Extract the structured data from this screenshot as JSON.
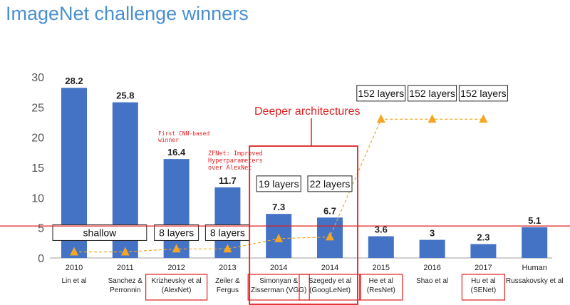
{
  "page_title": "ImageNet challenge winners",
  "chart_data": {
    "type": "bar",
    "title": "ImageNet challenge winners",
    "ylim": [
      0,
      30
    ],
    "yticks": [
      0,
      5,
      10,
      15,
      20,
      25,
      30
    ],
    "grid": false,
    "bar_color": "#4472c4",
    "marker_color": "#f5a623",
    "highlight_color": "#e02020",
    "categories": [
      {
        "year": "2010",
        "author": [
          "Lin et al"
        ],
        "boxed": false
      },
      {
        "year": "2011",
        "author": [
          "Sanchez &",
          "Perronnin"
        ],
        "boxed": false
      },
      {
        "year": "2012",
        "author": [
          "Krizhevsky et al",
          "(AlexNet)"
        ],
        "boxed": true
      },
      {
        "year": "2013",
        "author": [
          "Zeiler &",
          "Fergus"
        ],
        "boxed": false
      },
      {
        "year": "2014",
        "author": [
          "Simonyan &",
          "Zisserman (VGG)"
        ],
        "boxed": true
      },
      {
        "year": "2014",
        "author": [
          "Szegedy et al",
          "(GoogLeNet)"
        ],
        "boxed": true
      },
      {
        "year": "2015",
        "author": [
          "He et al",
          "(ResNet)"
        ],
        "boxed": true
      },
      {
        "year": "2016",
        "author": [
          "Shao et al"
        ],
        "boxed": false
      },
      {
        "year": "2017",
        "author": [
          "Hu et al",
          "(SENet)"
        ],
        "boxed": true
      },
      {
        "year": "Human",
        "author": [
          "Russakovsky et al"
        ],
        "boxed": false
      }
    ],
    "values": [
      28.2,
      25.8,
      16.4,
      11.7,
      7.3,
      6.7,
      3.6,
      3,
      2.3,
      5.1
    ],
    "value_labels": [
      "28.2",
      "25.8",
      "16.4",
      "11.7",
      "7.3",
      "6.7",
      "3.6",
      "3",
      "2.3",
      "5.1"
    ],
    "depth_markers": [
      1,
      1,
      1.5,
      1.5,
      3.2,
      3.5,
      23,
      23,
      23,
      null
    ],
    "layer_labels": [
      {
        "text": "shallow",
        "span": [
          0,
          1
        ],
        "y": 4.2
      },
      {
        "text": "8 layers",
        "span": [
          2,
          2
        ],
        "y": 4.2
      },
      {
        "text": "8 layers",
        "span": [
          3,
          3
        ],
        "y": 4.2
      },
      {
        "text": "19 layers",
        "span": [
          4,
          4
        ],
        "y": 12.3
      },
      {
        "text": "22 layers",
        "span": [
          5,
          5
        ],
        "y": 12.3
      },
      {
        "text": "152 layers",
        "span": [
          6,
          6
        ],
        "y": 27.3
      },
      {
        "text": "152 layers",
        "span": [
          7,
          7
        ],
        "y": 27.3
      },
      {
        "text": "152 layers",
        "span": [
          8,
          8
        ],
        "y": 27.3
      }
    ],
    "reference_line_y": 5.3,
    "annotations": [
      {
        "text": "Deeper architectures",
        "color": "#e02020"
      },
      {
        "text": "First CNN-based winner",
        "lines": [
          "First CNN-based",
          "winner"
        ],
        "color": "#e02020",
        "at": 2
      },
      {
        "text": "ZFNet: Improved Hyperparameters over AlexNet",
        "lines": [
          "ZFNet: Improved",
          "Hyperparameters",
          "over AlexNet"
        ],
        "color": "#e02020",
        "at": 3
      }
    ]
  }
}
